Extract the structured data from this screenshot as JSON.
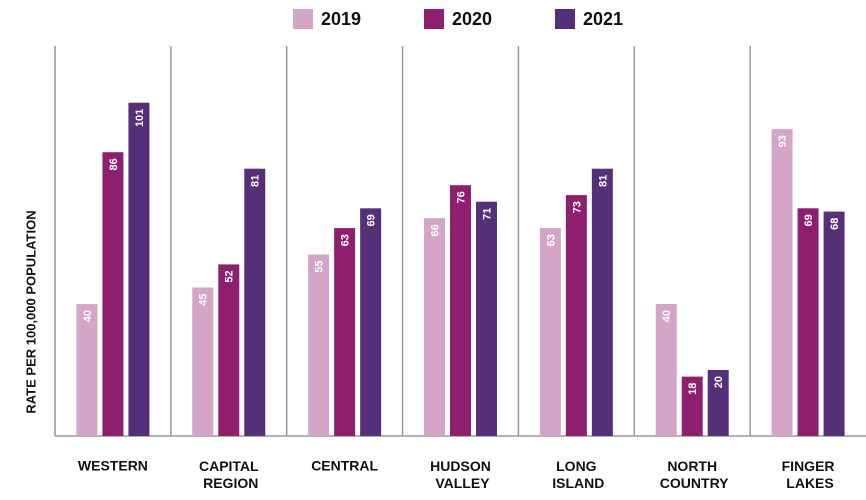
{
  "chart_data": {
    "type": "bar",
    "ylabel": "RATE PER 100,000 POPULATION",
    "categories": [
      "WESTERN",
      "CAPITAL REGION",
      "CENTRAL",
      "HUDSON VALLEY",
      "LONG ISLAND",
      "NORTH COUNTRY",
      "FINGER LAKES"
    ],
    "series": [
      {
        "name": "2019",
        "color": "#d4a5c6",
        "values": [
          40,
          45,
          55,
          66,
          63,
          40,
          93
        ]
      },
      {
        "name": "2020",
        "color": "#8e1f6f",
        "values": [
          86,
          52,
          63,
          76,
          73,
          18,
          69
        ]
      },
      {
        "name": "2021",
        "color": "#553079",
        "values": [
          101,
          81,
          69,
          71,
          81,
          20,
          68
        ]
      }
    ],
    "ylim": [
      0,
      120
    ],
    "legend": "top"
  }
}
